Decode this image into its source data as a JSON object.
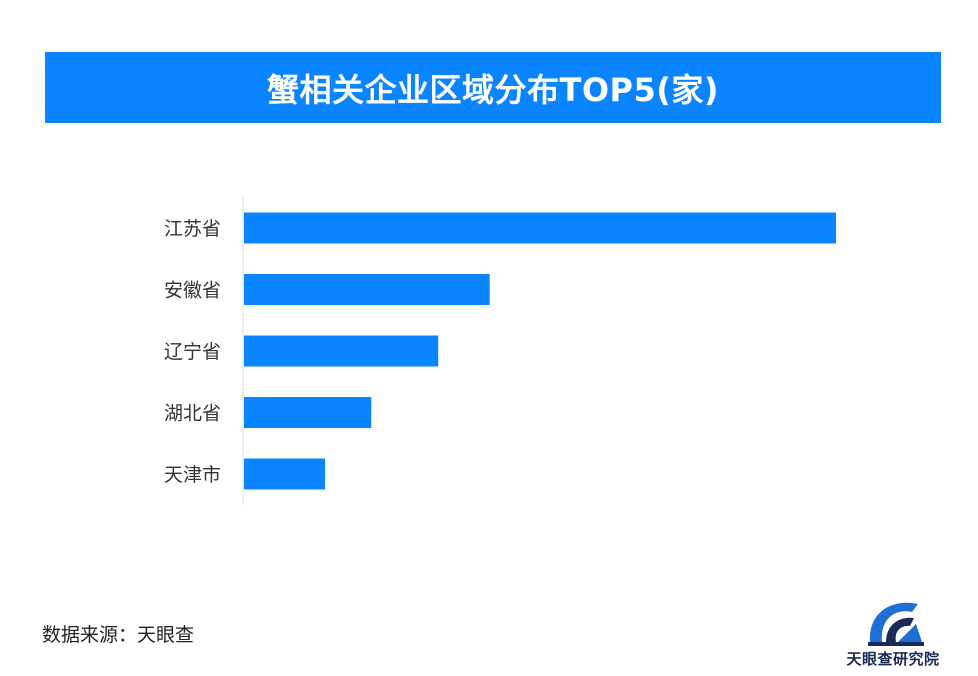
{
  "chart_data": {
    "type": "bar",
    "orientation": "horizontal",
    "title": "蟹相关企业区域分布TOP5(家)",
    "categories": [
      "江苏省",
      "安徽省",
      "辽宁省",
      "湖北省",
      "天津市"
    ],
    "values": [
      100,
      41.5,
      32.8,
      21.5,
      13.7
    ],
    "xlim": [
      0,
      100
    ],
    "grid": false,
    "legend": "none",
    "bar_color": "#0a84ff",
    "axis_color": "#d9d9d9"
  },
  "footer": {
    "source": "数据来源：天眼查",
    "logo_text": "天眼查研究院"
  },
  "colors": {
    "accent": "#0a84ff",
    "logo": "#1a2a55"
  }
}
